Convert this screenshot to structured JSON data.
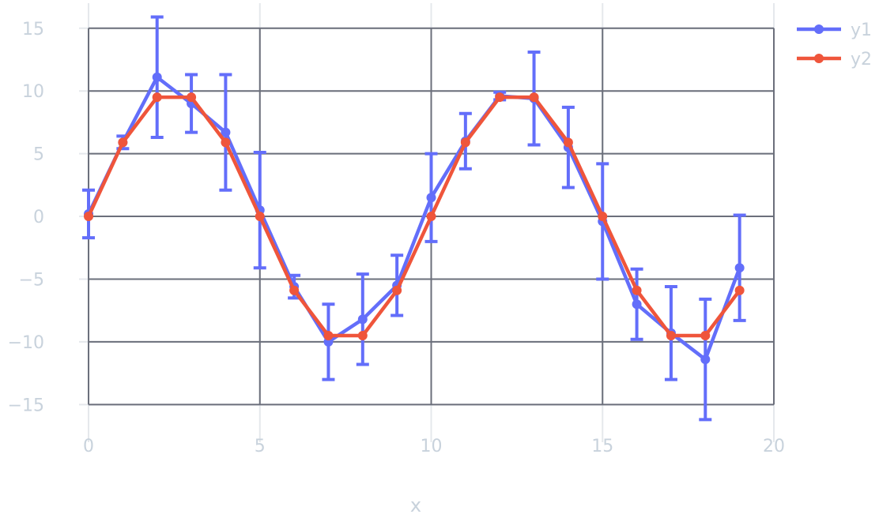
{
  "chart_data": {
    "type": "line",
    "title": "",
    "xlabel": "x",
    "ylabel": "",
    "xlim": [
      -1.2,
      20.3
    ],
    "ylim": [
      -18,
      17
    ],
    "grid": true,
    "legend_position": "top-right",
    "x_ticks": [
      {
        "value": 0,
        "label": "0"
      },
      {
        "value": 5,
        "label": "5"
      },
      {
        "value": 10,
        "label": "10"
      },
      {
        "value": 15,
        "label": "15"
      },
      {
        "value": 20,
        "label": "20"
      }
    ],
    "y_ticks": [
      {
        "value": 15,
        "label": "15"
      },
      {
        "value": 10,
        "label": "10"
      },
      {
        "value": 5,
        "label": "5"
      },
      {
        "value": 0,
        "label": "0"
      },
      {
        "value": -5,
        "label": "−5"
      },
      {
        "value": -10,
        "label": "−10"
      },
      {
        "value": -15,
        "label": "−15"
      }
    ],
    "inner_box": {
      "x": [
        0,
        20
      ],
      "y": [
        -15,
        15
      ]
    },
    "x": [
      0,
      1,
      2,
      3,
      4,
      5,
      6,
      7,
      8,
      9,
      10,
      11,
      12,
      13,
      14,
      15,
      16,
      17,
      18,
      19
    ],
    "series": [
      {
        "name": "y1",
        "color": "#636efa",
        "values": [
          0.2,
          5.9,
          11.1,
          9.0,
          6.7,
          0.5,
          -5.6,
          -10.0,
          -8.2,
          -5.5,
          1.5,
          6.0,
          9.6,
          9.4,
          5.5,
          -0.4,
          -7.0,
          -9.3,
          -11.4,
          -4.1
        ],
        "error": [
          1.9,
          0.5,
          4.8,
          2.3,
          4.6,
          4.6,
          0.9,
          3.0,
          3.6,
          2.4,
          3.5,
          2.2,
          0.3,
          3.7,
          3.2,
          4.6,
          2.8,
          3.7,
          4.8,
          4.2
        ]
      },
      {
        "name": "y2",
        "color": "#ef553b",
        "values": [
          0.0,
          5.9,
          9.5,
          9.5,
          5.9,
          0.0,
          -5.9,
          -9.5,
          -9.5,
          -5.9,
          0.0,
          5.9,
          9.5,
          9.5,
          5.9,
          0.0,
          -5.9,
          -9.5,
          -9.5,
          -5.9
        ]
      }
    ]
  }
}
